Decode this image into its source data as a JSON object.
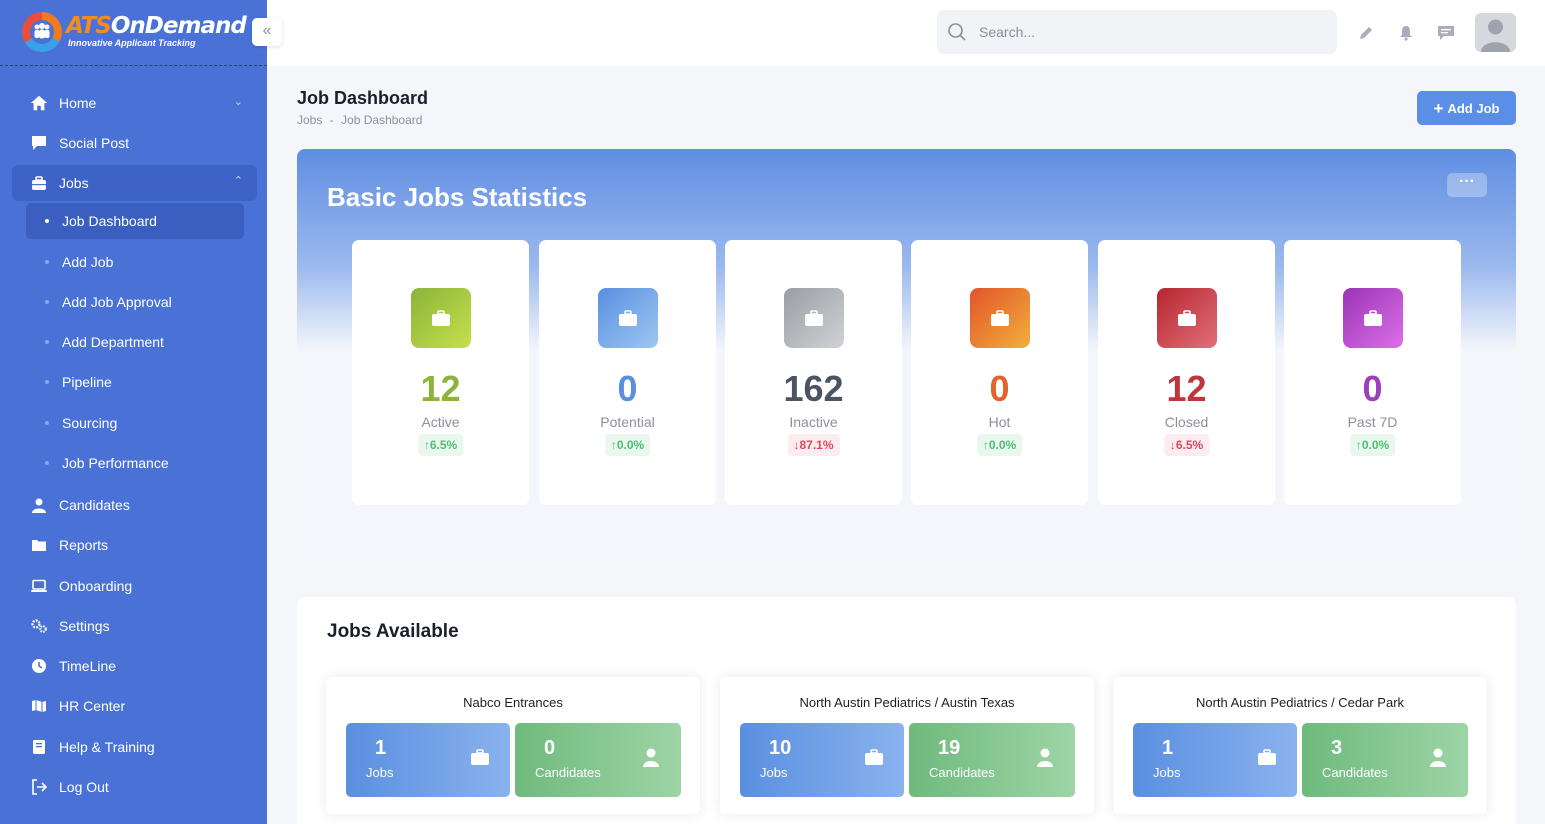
{
  "brand": {
    "part1": "ATS",
    "part2": "OnDemand",
    "tagline": "Innovative Applicant Tracking"
  },
  "sidebar": {
    "items": [
      {
        "label": "Home",
        "icon": "home-icon"
      },
      {
        "label": "Social Post",
        "icon": "chat-icon"
      },
      {
        "label": "Jobs",
        "icon": "briefcase-icon"
      },
      {
        "label": "Candidates",
        "icon": "user-icon"
      },
      {
        "label": "Reports",
        "icon": "folder-icon"
      },
      {
        "label": "Onboarding",
        "icon": "laptop-icon"
      },
      {
        "label": "Settings",
        "icon": "gears-icon"
      },
      {
        "label": "TimeLine",
        "icon": "clock-icon"
      },
      {
        "label": "HR Center",
        "icon": "map-icon"
      },
      {
        "label": "Help & Training",
        "icon": "book-icon"
      },
      {
        "label": "Log Out",
        "icon": "logout-icon"
      }
    ],
    "jobs_sub": [
      "Job Dashboard",
      "Add Job",
      "Add Job Approval",
      "Add Department",
      "Pipeline",
      "Sourcing",
      "Job Performance"
    ]
  },
  "search": {
    "placeholder": "Search..."
  },
  "page": {
    "title": "Job Dashboard",
    "breadcrumb": [
      "Jobs",
      "-",
      "Job Dashboard"
    ],
    "add_job_label": "Add Job"
  },
  "stats": {
    "title": "Basic Jobs Statistics",
    "more_label": "···",
    "cards": [
      {
        "value": "12",
        "label": "Active",
        "change": "6.5%",
        "direction": "up",
        "color": "#8db43a"
      },
      {
        "value": "0",
        "label": "Potential",
        "change": "0.0%",
        "direction": "up",
        "color": "#5b8fe0"
      },
      {
        "value": "162",
        "label": "Inactive",
        "change": "87.1%",
        "direction": "down",
        "color": "#4d5363"
      },
      {
        "value": "0",
        "label": "Hot",
        "change": "0.0%",
        "direction": "up",
        "color": "#e2642a"
      },
      {
        "value": "12",
        "label": "Closed",
        "change": "6.5%",
        "direction": "down",
        "color": "#c0343b"
      },
      {
        "value": "0",
        "label": "Past 7D",
        "change": "0.0%",
        "direction": "up",
        "color": "#9c3fb8"
      }
    ]
  },
  "jobs_available": {
    "title": "Jobs Available",
    "cards": [
      {
        "name": "Nabco Entrances",
        "jobs": "1",
        "jobs_label": "Jobs",
        "candidates": "0",
        "candidates_label": "Candidates"
      },
      {
        "name": "North Austin Pediatrics / Austin Texas",
        "jobs": "10",
        "jobs_label": "Jobs",
        "candidates": "19",
        "candidates_label": "Candidates"
      },
      {
        "name": "North Austin Pediatrics / Cedar Park",
        "jobs": "1",
        "jobs_label": "Jobs",
        "candidates": "3",
        "candidates_label": "Candidates"
      }
    ]
  },
  "up_arrow": "↑",
  "down_arrow": "↓"
}
